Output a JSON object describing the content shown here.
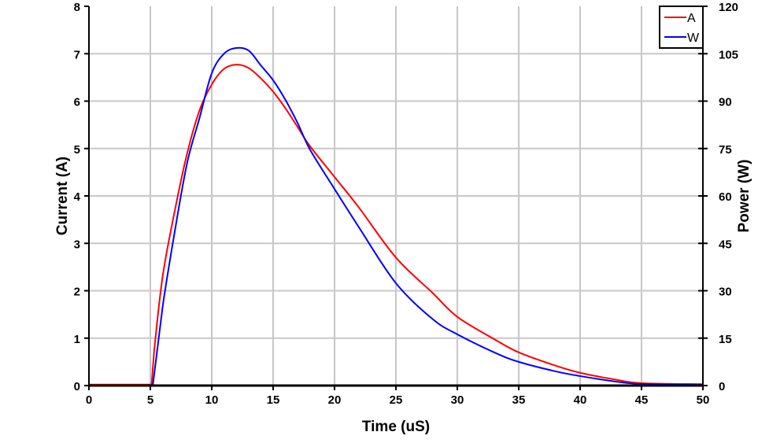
{
  "chart_data": {
    "type": "line",
    "title": "",
    "xlabel": "Time (uS)",
    "ylabel": "Current (A)",
    "y2label": "Power (W)",
    "xlim": [
      0,
      50
    ],
    "ylim": [
      0,
      8
    ],
    "y2lim": [
      0,
      120
    ],
    "xticks": [
      0,
      5,
      10,
      15,
      20,
      25,
      30,
      35,
      40,
      45,
      50
    ],
    "yticks": [
      0,
      1,
      2,
      3,
      4,
      5,
      6,
      7,
      8
    ],
    "y2ticks": [
      0,
      15,
      30,
      45,
      60,
      75,
      90,
      105,
      120
    ],
    "grid": true,
    "legend_position": "top-right",
    "series": [
      {
        "name": "A",
        "axis": "left",
        "color": "#ff0000",
        "x": [
          0,
          5.1,
          5.3,
          6,
          7,
          8,
          9,
          10,
          11,
          12,
          13,
          14,
          15,
          16,
          17,
          18,
          20,
          22,
          25,
          28,
          30,
          33,
          35,
          38,
          40,
          43,
          45,
          50
        ],
        "y": [
          0.02,
          0.02,
          0.7,
          2.3,
          3.7,
          4.9,
          5.8,
          6.35,
          6.68,
          6.77,
          6.7,
          6.48,
          6.2,
          5.85,
          5.45,
          5.05,
          4.4,
          3.75,
          2.7,
          1.95,
          1.45,
          0.98,
          0.7,
          0.42,
          0.27,
          0.12,
          0.05,
          0.03
        ]
      },
      {
        "name": "W",
        "axis": "right",
        "color": "#0000ff",
        "x": [
          0,
          5.2,
          6,
          7,
          8,
          9,
          10,
          11,
          12,
          13,
          14,
          15,
          16,
          17,
          18,
          20,
          22,
          25,
          28,
          30,
          33,
          35,
          38,
          40,
          43,
          45,
          50
        ],
        "y": [
          0,
          0,
          24.9,
          49,
          70.5,
          84.6,
          98.8,
          105,
          106.8,
          106,
          101.3,
          96.6,
          90.4,
          83,
          74.7,
          62.2,
          50,
          32.4,
          21,
          16.2,
          10.5,
          7.5,
          4.5,
          3,
          1.2,
          0.5,
          0.2
        ]
      }
    ]
  }
}
